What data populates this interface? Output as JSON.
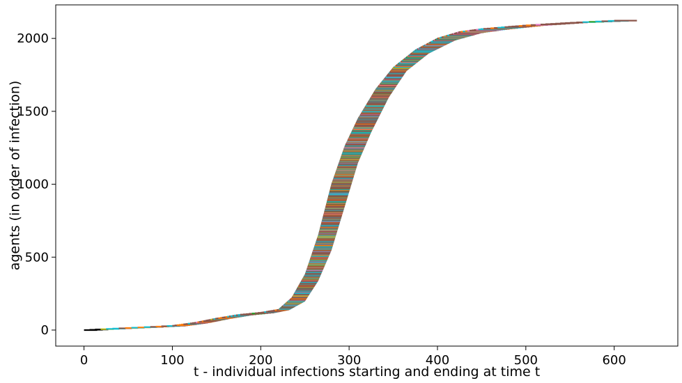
{
  "chart_data": {
    "type": "line",
    "title": "",
    "xlabel": "t - individual infections starting and ending at time t",
    "ylabel": "agents (in order of infection)",
    "xlim": [
      -32,
      672
    ],
    "ylim": [
      -110,
      2230
    ],
    "x_ticks": [
      0,
      100,
      200,
      300,
      400,
      500,
      600
    ],
    "y_ticks": [
      0,
      500,
      1000,
      1500,
      2000
    ],
    "x_tick_labels": [
      "0",
      "100",
      "200",
      "300",
      "400",
      "500",
      "600"
    ],
    "y_tick_labels": [
      "0",
      "500",
      "1000",
      "1500",
      "2000"
    ],
    "grid": false,
    "legend": "none",
    "description_of_series": "one horizontal segment per infected agent (y = infection order), from infection time to recovery time",
    "n_agents": 2124,
    "palette": [
      "#1f77b4",
      "#ff7f0e",
      "#2ca02c",
      "#d62728",
      "#9467bd",
      "#8c564b",
      "#e377c2",
      "#7f7f7f",
      "#bcbd22",
      "#17becf"
    ],
    "infection_curve": [
      {
        "t": 0,
        "agent": 0
      },
      {
        "t": 25,
        "agent": 8
      },
      {
        "t": 50,
        "agent": 15
      },
      {
        "t": 75,
        "agent": 22
      },
      {
        "t": 100,
        "agent": 30
      },
      {
        "t": 125,
        "agent": 50
      },
      {
        "t": 150,
        "agent": 80
      },
      {
        "t": 175,
        "agent": 105
      },
      {
        "t": 200,
        "agent": 120
      },
      {
        "t": 220,
        "agent": 140
      },
      {
        "t": 235,
        "agent": 220
      },
      {
        "t": 250,
        "agent": 380
      },
      {
        "t": 265,
        "agent": 650
      },
      {
        "t": 280,
        "agent": 1000
      },
      {
        "t": 295,
        "agent": 1260
      },
      {
        "t": 310,
        "agent": 1450
      },
      {
        "t": 330,
        "agent": 1650
      },
      {
        "t": 350,
        "agent": 1800
      },
      {
        "t": 375,
        "agent": 1920
      },
      {
        "t": 400,
        "agent": 2000
      },
      {
        "t": 425,
        "agent": 2045
      },
      {
        "t": 450,
        "agent": 2065
      },
      {
        "t": 500,
        "agent": 2090
      },
      {
        "t": 550,
        "agent": 2108
      },
      {
        "t": 600,
        "agent": 2122
      }
    ],
    "recovery_curve": [
      {
        "t": 15,
        "agent": 0
      },
      {
        "t": 40,
        "agent": 8
      },
      {
        "t": 65,
        "agent": 15
      },
      {
        "t": 90,
        "agent": 22
      },
      {
        "t": 115,
        "agent": 30
      },
      {
        "t": 140,
        "agent": 50
      },
      {
        "t": 165,
        "agent": 80
      },
      {
        "t": 190,
        "agent": 105
      },
      {
        "t": 215,
        "agent": 120
      },
      {
        "t": 232,
        "agent": 140
      },
      {
        "t": 250,
        "agent": 200
      },
      {
        "t": 265,
        "agent": 340
      },
      {
        "t": 280,
        "agent": 550
      },
      {
        "t": 295,
        "agent": 850
      },
      {
        "t": 310,
        "agent": 1150
      },
      {
        "t": 325,
        "agent": 1360
      },
      {
        "t": 345,
        "agent": 1600
      },
      {
        "t": 365,
        "agent": 1780
      },
      {
        "t": 390,
        "agent": 1900
      },
      {
        "t": 420,
        "agent": 1990
      },
      {
        "t": 450,
        "agent": 2040
      },
      {
        "t": 480,
        "agent": 2065
      },
      {
        "t": 520,
        "agent": 2090
      },
      {
        "t": 570,
        "agent": 2110
      },
      {
        "t": 635,
        "agent": 2124
      }
    ]
  }
}
